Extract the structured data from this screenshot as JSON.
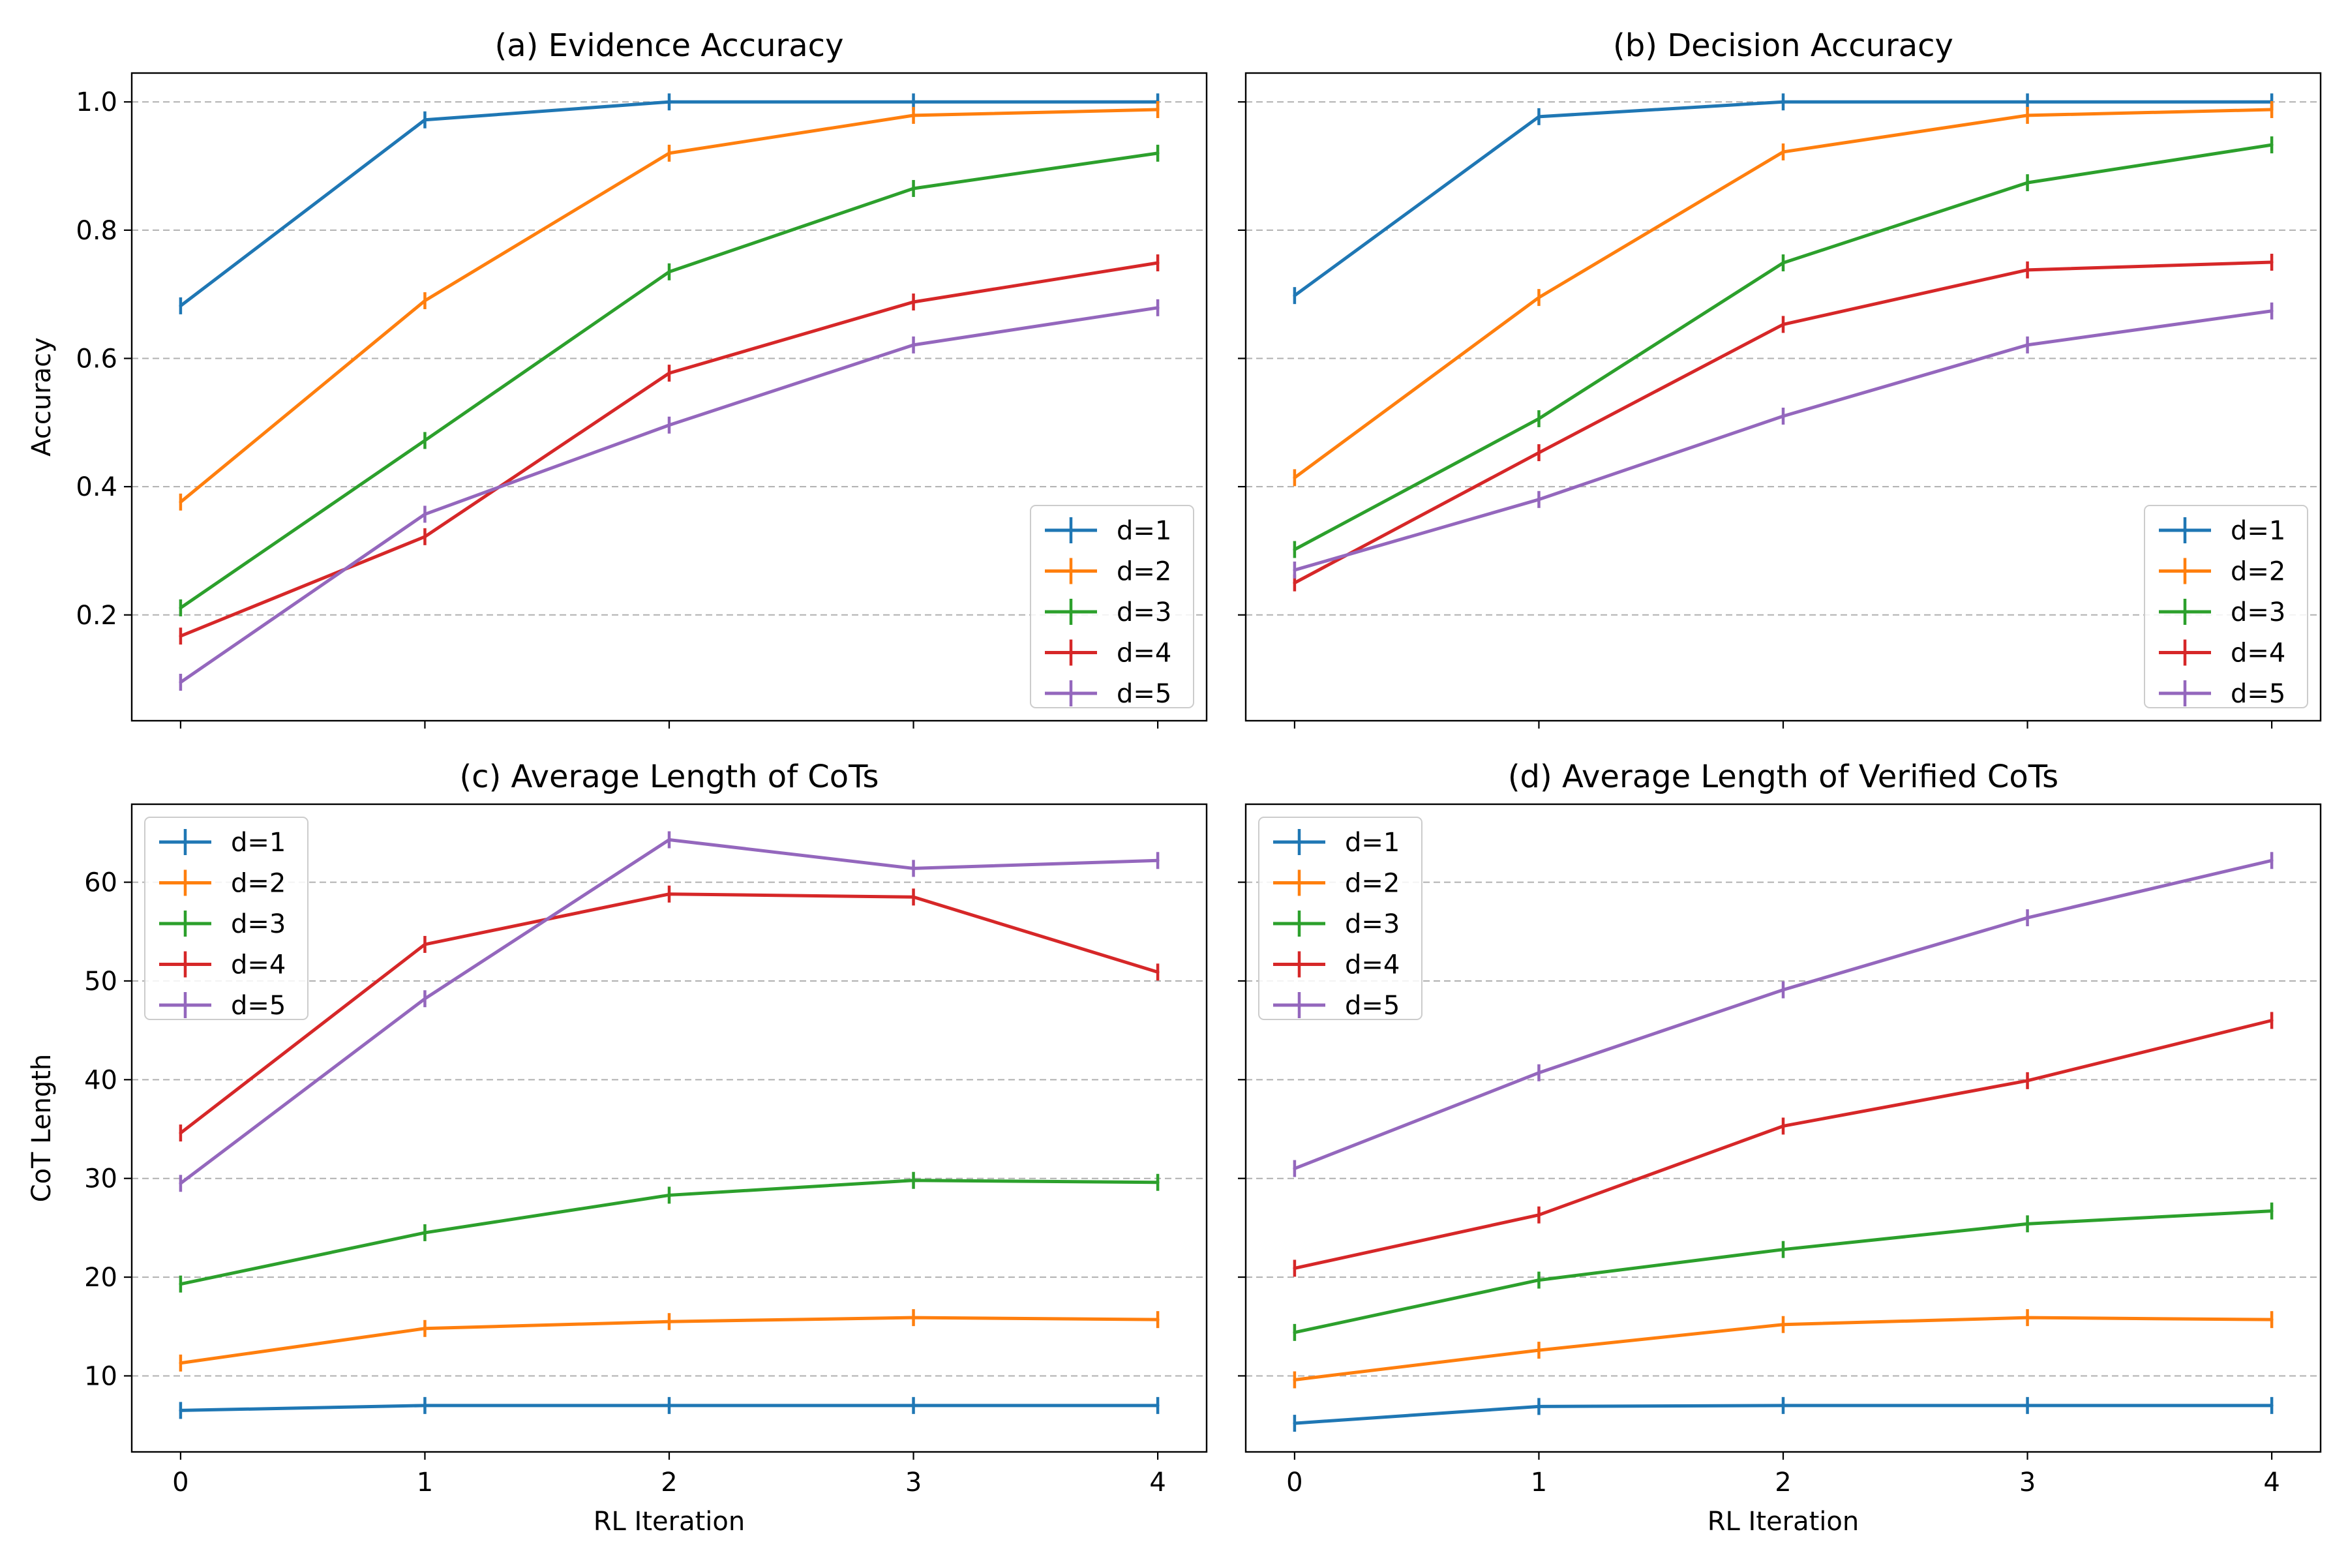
{
  "colors": {
    "series": [
      "#1f77b4",
      "#ff7f0e",
      "#2ca02c",
      "#d62728",
      "#9467bd"
    ],
    "grid": "#b0b0b0",
    "axis": "#000000"
  },
  "chart_data": [
    {
      "type": "line",
      "title": "(a) Evidence Accuracy",
      "xlabel": "",
      "ylabel": "Accuracy",
      "x": [
        0,
        1,
        2,
        3,
        4
      ],
      "xticks": [
        "0",
        "1",
        "2",
        "3",
        "4"
      ],
      "show_xtick_labels": false,
      "xlim": [
        -0.2,
        4.2
      ],
      "ylim": [
        0.035,
        1.045
      ],
      "yticks": [
        0.2,
        0.4,
        0.6,
        0.8,
        1.0
      ],
      "ytick_labels": [
        "0.2",
        "0.4",
        "0.6",
        "0.8",
        "1.0"
      ],
      "show_ytick_labels": true,
      "grid": "horizontal dashed",
      "legend_position": "lower-right",
      "series": [
        {
          "name": "d=1",
          "values": [
            0.682,
            0.972,
            1.0,
            1.0,
            1.0
          ]
        },
        {
          "name": "d=2",
          "values": [
            0.376,
            0.69,
            0.92,
            0.979,
            0.988
          ]
        },
        {
          "name": "d=3",
          "values": [
            0.211,
            0.472,
            0.735,
            0.865,
            0.92
          ]
        },
        {
          "name": "d=4",
          "values": [
            0.167,
            0.322,
            0.577,
            0.688,
            0.749
          ]
        },
        {
          "name": "d=5",
          "values": [
            0.095,
            0.357,
            0.496,
            0.621,
            0.679
          ]
        }
      ]
    },
    {
      "type": "line",
      "title": "(b) Decision Accuracy",
      "xlabel": "",
      "ylabel": "",
      "x": [
        0,
        1,
        2,
        3,
        4
      ],
      "xticks": [
        "0",
        "1",
        "2",
        "3",
        "4"
      ],
      "show_xtick_labels": false,
      "xlim": [
        -0.2,
        4.2
      ],
      "ylim": [
        0.035,
        1.045
      ],
      "yticks": [
        0.2,
        0.4,
        0.6,
        0.8,
        1.0
      ],
      "ytick_labels": [
        "0.2",
        "0.4",
        "0.6",
        "0.8",
        "1.0"
      ],
      "show_ytick_labels": false,
      "grid": "horizontal dashed",
      "legend_position": "lower-right",
      "series": [
        {
          "name": "d=1",
          "values": [
            0.698,
            0.977,
            1.0,
            1.0,
            1.0
          ]
        },
        {
          "name": "d=2",
          "values": [
            0.414,
            0.695,
            0.922,
            0.979,
            0.988
          ]
        },
        {
          "name": "d=3",
          "values": [
            0.302,
            0.506,
            0.749,
            0.874,
            0.933
          ]
        },
        {
          "name": "d=4",
          "values": [
            0.25,
            0.453,
            0.653,
            0.738,
            0.75
          ]
        },
        {
          "name": "d=5",
          "values": [
            0.27,
            0.38,
            0.51,
            0.621,
            0.674
          ]
        }
      ]
    },
    {
      "type": "line",
      "title": "(c) Average Length of CoTs",
      "xlabel": "RL Iteration",
      "ylabel": "CoT Length",
      "x": [
        0,
        1,
        2,
        3,
        4
      ],
      "xticks": [
        "0",
        "1",
        "2",
        "3",
        "4"
      ],
      "show_xtick_labels": true,
      "xlim": [
        -0.2,
        4.2
      ],
      "ylim": [
        2.3,
        67.9
      ],
      "yticks": [
        10,
        20,
        30,
        40,
        50,
        60
      ],
      "ytick_labels": [
        "10",
        "20",
        "30",
        "40",
        "50",
        "60"
      ],
      "show_ytick_labels": true,
      "grid": "horizontal dashed",
      "legend_position": "upper-left",
      "series": [
        {
          "name": "d=1",
          "values": [
            6.5,
            7.0,
            7.0,
            7.0,
            7.0
          ]
        },
        {
          "name": "d=2",
          "values": [
            11.3,
            14.8,
            15.5,
            15.9,
            15.7
          ]
        },
        {
          "name": "d=3",
          "values": [
            19.3,
            24.5,
            28.3,
            29.8,
            29.6
          ]
        },
        {
          "name": "d=4",
          "values": [
            34.6,
            53.7,
            58.8,
            58.5,
            50.9
          ]
        },
        {
          "name": "d=5",
          "values": [
            29.5,
            48.2,
            64.3,
            61.4,
            62.2
          ]
        }
      ]
    },
    {
      "type": "line",
      "title": "(d) Average Length of Verified CoTs",
      "xlabel": "RL Iteration",
      "ylabel": "",
      "x": [
        0,
        1,
        2,
        3,
        4
      ],
      "xticks": [
        "0",
        "1",
        "2",
        "3",
        "4"
      ],
      "show_xtick_labels": true,
      "xlim": [
        -0.2,
        4.2
      ],
      "ylim": [
        2.3,
        67.9
      ],
      "yticks": [
        10,
        20,
        30,
        40,
        50,
        60
      ],
      "ytick_labels": [
        "10",
        "20",
        "30",
        "40",
        "50",
        "60"
      ],
      "show_ytick_labels": false,
      "grid": "horizontal dashed",
      "legend_position": "upper-left",
      "series": [
        {
          "name": "d=1",
          "values": [
            5.2,
            6.9,
            7.0,
            7.0,
            7.0
          ]
        },
        {
          "name": "d=2",
          "values": [
            9.6,
            12.6,
            15.2,
            15.9,
            15.7
          ]
        },
        {
          "name": "d=3",
          "values": [
            14.4,
            19.7,
            22.8,
            25.4,
            26.7
          ]
        },
        {
          "name": "d=4",
          "values": [
            20.9,
            26.3,
            35.3,
            39.9,
            46.0
          ]
        },
        {
          "name": "d=5",
          "values": [
            31.0,
            40.7,
            49.1,
            56.4,
            62.2
          ]
        }
      ]
    }
  ]
}
